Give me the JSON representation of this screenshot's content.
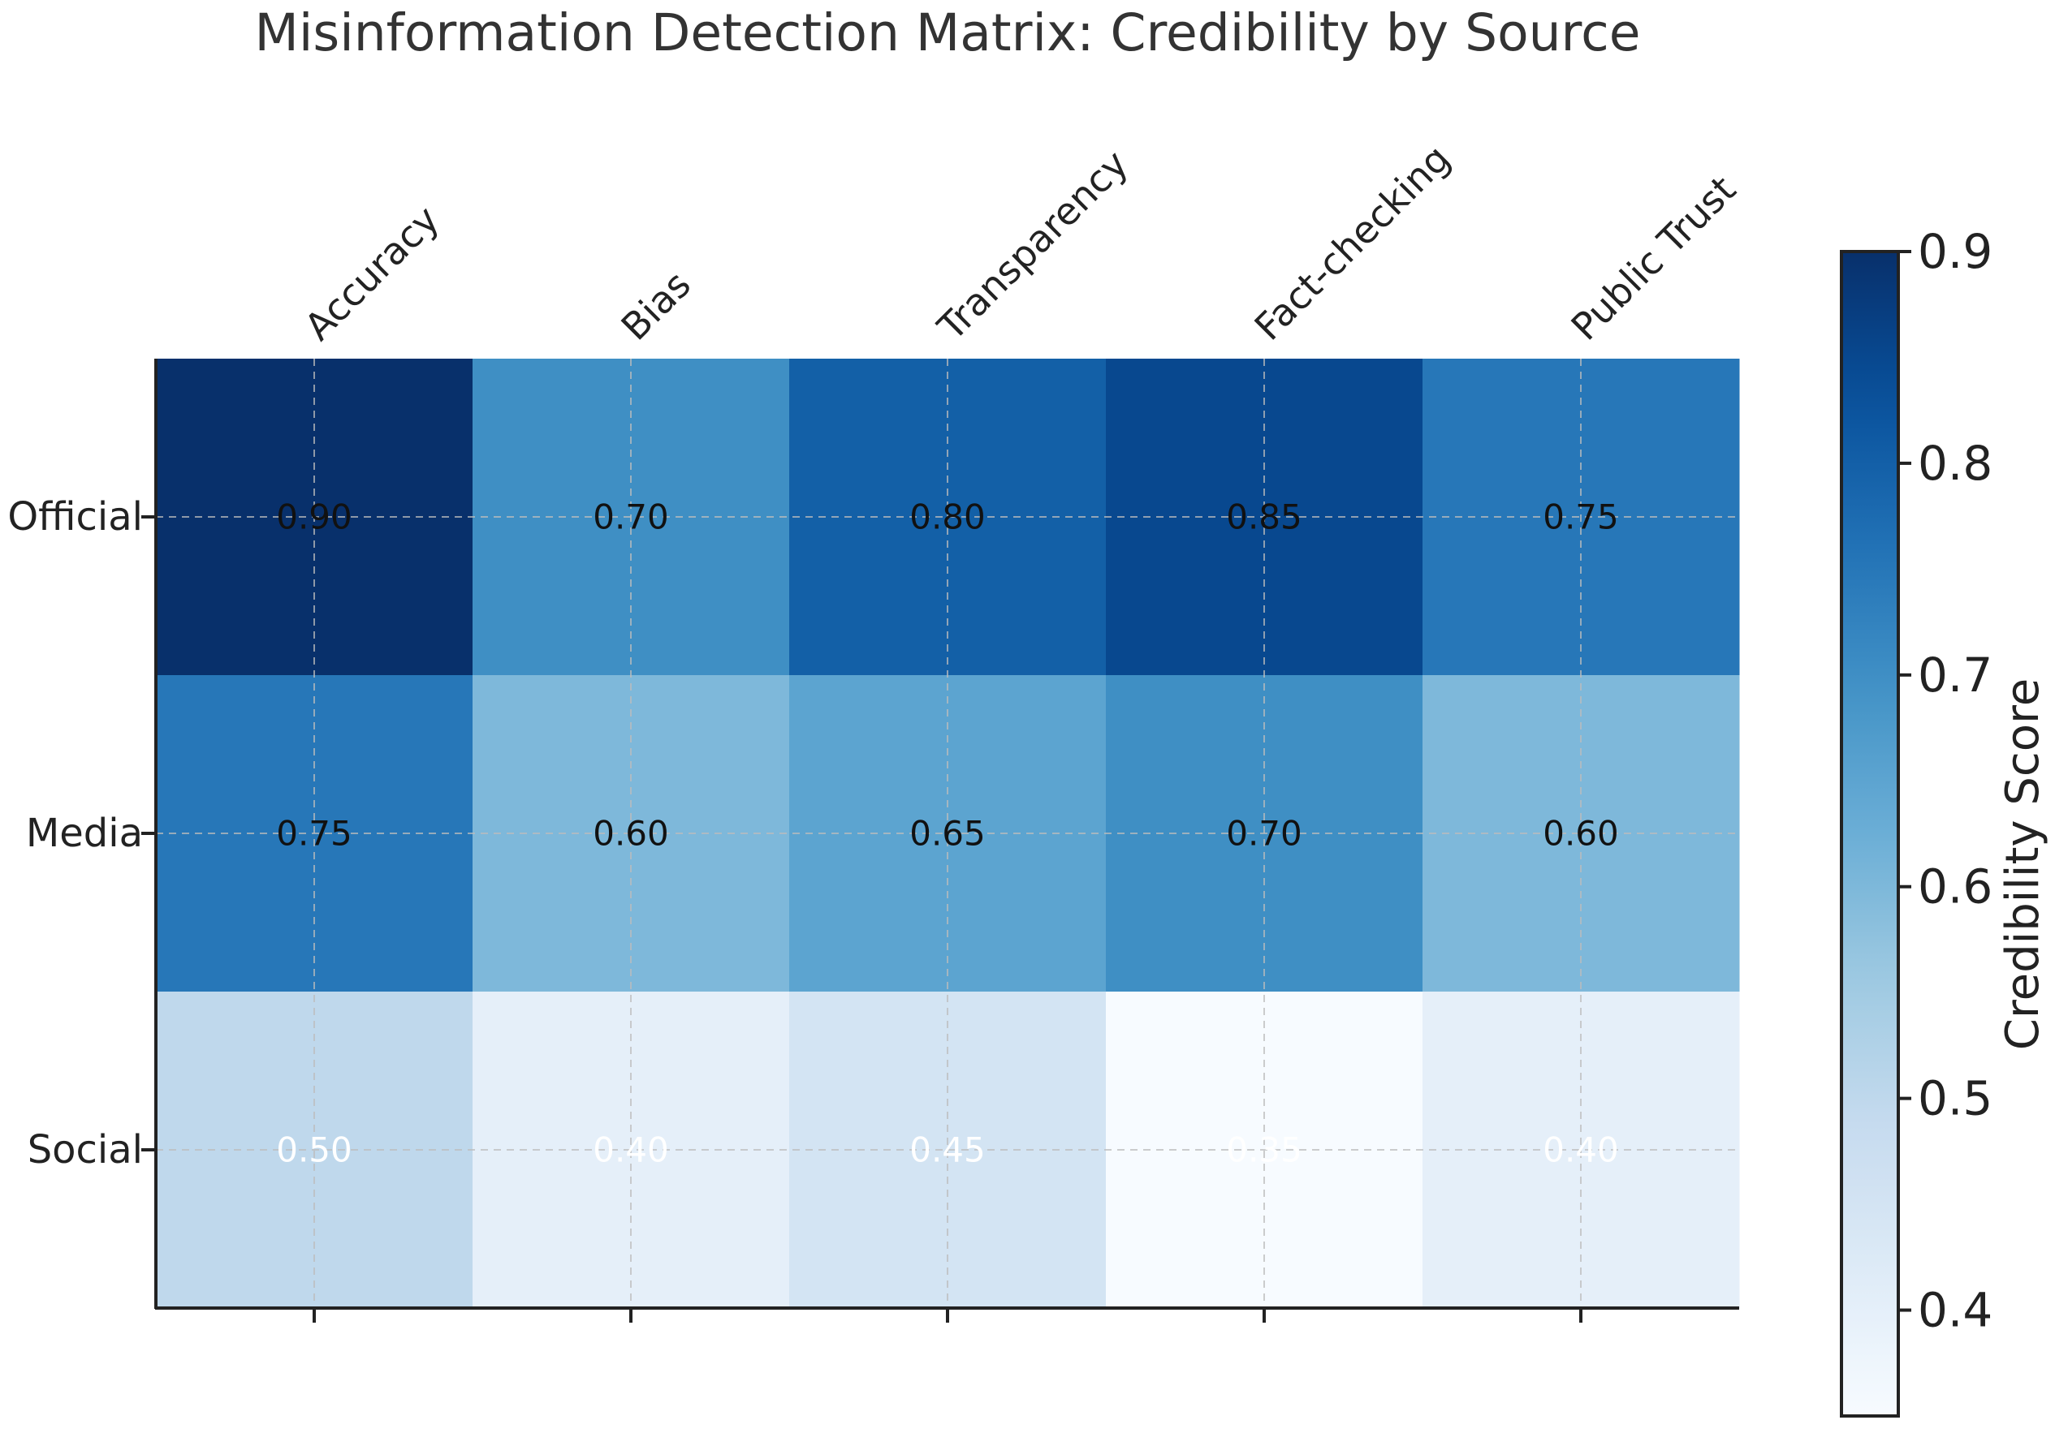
{
  "chart_data": {
    "type": "heatmap",
    "title": "Misinformation Detection Matrix: Credibility by Source",
    "columns": [
      "Accuracy",
      "Bias",
      "Transparency",
      "Fact-checking",
      "Public Trust"
    ],
    "rows": [
      "Official",
      "Media",
      "Social"
    ],
    "values": [
      [
        0.9,
        0.7,
        0.8,
        0.85,
        0.75
      ],
      [
        0.75,
        0.6,
        0.65,
        0.7,
        0.6
      ],
      [
        0.5,
        0.4,
        0.45,
        0.35,
        0.4
      ]
    ],
    "value_labels": [
      [
        "0.90",
        "0.70",
        "0.80",
        "0.85",
        "0.75"
      ],
      [
        "0.75",
        "0.60",
        "0.65",
        "0.70",
        "0.60"
      ],
      [
        "0.50",
        "0.40",
        "0.45",
        "0.35",
        "0.40"
      ]
    ],
    "colorbar": {
      "label": "Credibility Score",
      "range": [
        0.35,
        0.9
      ],
      "ticks": [
        "0.4",
        "0.5",
        "0.6",
        "0.7",
        "0.8",
        "0.9"
      ],
      "colormap": "Blues"
    },
    "grid": true,
    "x_tick_position": "top",
    "x_tick_rotation": "45°"
  }
}
